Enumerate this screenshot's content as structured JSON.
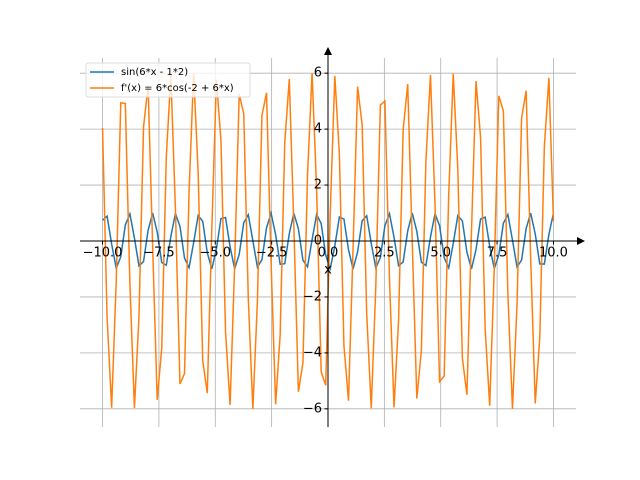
{
  "chart_data": {
    "type": "line",
    "x": [
      -10,
      -9.798,
      -9.596,
      -9.394,
      -9.192,
      -8.99,
      -8.788,
      -8.586,
      -8.384,
      -8.182,
      -7.98,
      -7.778,
      -7.576,
      -7.374,
      -7.172,
      -6.97,
      -6.768,
      -6.566,
      -6.364,
      -6.162,
      -5.96,
      -5.758,
      -5.556,
      -5.354,
      -5.152,
      -4.949,
      -4.747,
      -4.545,
      -4.343,
      -4.141,
      -3.939,
      -3.737,
      -3.535,
      -3.333,
      -3.131,
      -2.929,
      -2.727,
      -2.525,
      -2.323,
      -2.121,
      -1.919,
      -1.717,
      -1.515,
      -1.313,
      -1.111,
      -0.909,
      -0.707,
      -0.505,
      -0.303,
      -0.101,
      0.101,
      0.303,
      0.505,
      0.707,
      0.909,
      1.111,
      1.313,
      1.515,
      1.717,
      1.919,
      2.121,
      2.323,
      2.525,
      2.727,
      2.929,
      3.131,
      3.333,
      3.535,
      3.737,
      3.939,
      4.141,
      4.343,
      4.545,
      4.747,
      4.949,
      5.152,
      5.354,
      5.556,
      5.758,
      5.96,
      6.162,
      6.364,
      6.566,
      6.768,
      6.97,
      7.172,
      7.374,
      7.576,
      7.778,
      7.98,
      8.182,
      8.384,
      8.586,
      8.788,
      8.99,
      9.192,
      9.394,
      9.596,
      9.798,
      10
    ],
    "series": [
      {
        "name": "sin(6*x - 1*2)",
        "color": "#1f77b4",
        "values": [
          0.739,
          0.89,
          -0.114,
          -0.97,
          -0.567,
          0.572,
          0.969,
          0.108,
          -0.893,
          -0.735,
          0.377,
          1.0,
          0.325,
          -0.772,
          -0.866,
          0.164,
          0.981,
          0.525,
          -0.612,
          -0.955,
          -0.058,
          0.914,
          0.7,
          -0.423,
          -0.997,
          -0.277,
          0.802,
          0.84,
          -0.212,
          -0.99,
          -0.482,
          0.651,
          0.939,
          0.009,
          -0.933,
          -0.664,
          0.467,
          0.992,
          0.229,
          -0.831,
          -0.813,
          0.261,
          0.995,
          0.438,
          -0.688,
          -0.921,
          0.041,
          0.95,
          0.626,
          -0.511,
          -0.984,
          -0.18,
          0.858,
          0.782,
          -0.308,
          -0.999,
          -0.393,
          0.723,
          0.901,
          -0.091,
          -0.964,
          -0.586,
          0.553,
          0.974,
          0.131,
          -0.882,
          -0.751,
          0.355,
          1.0,
          0.347,
          -0.757,
          -0.878,
          0.14,
          0.976,
          0.545,
          -0.593,
          -0.962,
          -0.082,
          0.905,
          0.717,
          -0.401,
          -0.999,
          -0.3,
          0.788,
          0.853,
          -0.189,
          -0.986,
          -0.503,
          0.633,
          0.947,
          0.032,
          -0.925,
          -0.681,
          0.446,
          0.995,
          0.252,
          -0.818,
          -0.824,
          0.238,
          0.993
        ]
      },
      {
        "name": "f'(x) = 6*cos(-2 + 6*x)",
        "color": "#ff7f0e",
        "values": [
          4.04,
          -2.73,
          -5.96,
          -1.45,
          4.94,
          4.92,
          -1.49,
          -5.97,
          -2.7,
          4.07,
          5.56,
          -0.17,
          -5.68,
          -3.82,
          3.0,
          5.92,
          1.16,
          -5.11,
          -4.74,
          1.78,
          5.99,
          2.43,
          -4.28,
          -5.44,
          0.47,
          5.77,
          3.58,
          -3.25,
          -5.86,
          -0.87,
          5.26,
          4.55,
          -2.06,
          -6.0,
          -2.15,
          4.49,
          5.3,
          -0.76,
          -5.84,
          -3.34,
          3.5,
          5.79,
          0.57,
          -5.39,
          -4.35,
          2.34,
          6.0,
          1.87,
          -4.68,
          -5.16,
          1.06,
          5.9,
          3.08,
          -3.74,
          -5.71,
          -0.27,
          5.52,
          4.15,
          -2.61,
          -5.98,
          -1.59,
          4.86,
          5.0,
          -1.35,
          -5.95,
          -2.83,
          3.96,
          5.61,
          -0.03,
          -5.63,
          -3.92,
          2.87,
          5.94,
          1.3,
          -5.03,
          -4.83,
          1.64,
          5.98,
          2.56,
          -4.18,
          -5.5,
          0.33,
          5.72,
          3.69,
          -3.13,
          -5.89,
          -1.01,
          5.19,
          4.65,
          -1.93,
          -6.0,
          -2.29,
          4.39,
          5.37,
          -0.62,
          -5.81,
          -3.45,
          3.38,
          5.83,
          0.71
        ]
      }
    ],
    "xlabel": "x",
    "xlim": [
      -11,
      11
    ],
    "ylim": [
      -6.65,
      6.9
    ],
    "xticks": [
      {
        "value": -10,
        "label": "−10.0"
      },
      {
        "value": -7.5,
        "label": "−7.5"
      },
      {
        "value": -5,
        "label": "−5.0"
      },
      {
        "value": -2.5,
        "label": "−2.5"
      },
      {
        "value": 0,
        "label": "0.0"
      },
      {
        "value": 2.5,
        "label": "2.5"
      },
      {
        "value": 5,
        "label": "5.0"
      },
      {
        "value": 7.5,
        "label": "7.5"
      },
      {
        "value": 10,
        "label": "10.0"
      }
    ],
    "yticks": [
      {
        "value": -6,
        "label": "−6"
      },
      {
        "value": -4,
        "label": "−4"
      },
      {
        "value": -2,
        "label": "−2"
      },
      0,
      2,
      4,
      6
    ],
    "grid": true,
    "legend": "upper left"
  }
}
